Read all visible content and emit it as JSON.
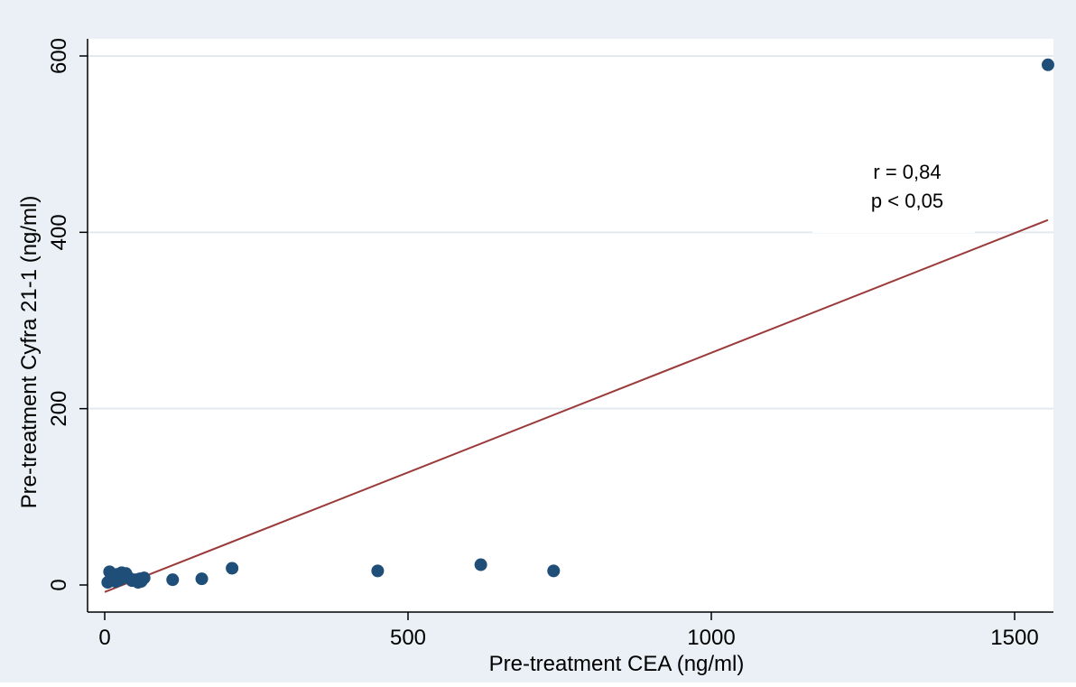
{
  "chart_data": {
    "type": "scatter",
    "title": "",
    "xlabel": "Pre-treatment CEA (ng/ml)",
    "ylabel": "Pre-treatment Cyfra 21-1 (ng/ml)",
    "xlim": [
      0,
      1600
    ],
    "ylim": [
      0,
      600
    ],
    "x_ticks": [
      0,
      500,
      1000,
      1500
    ],
    "y_ticks": [
      0,
      200,
      400,
      600
    ],
    "grid": "horizontal",
    "legend": "none",
    "annotation": {
      "line1": "r = 0,84",
      "line2": "p < 0,05"
    },
    "series": [
      {
        "kind": "points",
        "color": "#1f4e79",
        "x": [
          5,
          8,
          10,
          12,
          15,
          18,
          20,
          22,
          25,
          28,
          30,
          32,
          35,
          40,
          45,
          50,
          55,
          58,
          60,
          62,
          65,
          112,
          160,
          210,
          450,
          620,
          740,
          1555
        ],
        "y": [
          3,
          15,
          7,
          5,
          10,
          4,
          12,
          8,
          6,
          14,
          11,
          9,
          13,
          8,
          5,
          6,
          3,
          7,
          4,
          6,
          8,
          6,
          7,
          19,
          16,
          23,
          16,
          590
        ]
      },
      {
        "kind": "fit-line",
        "color": "#9b3a3a",
        "x": [
          0,
          1555
        ],
        "y": [
          -8,
          414
        ]
      }
    ]
  }
}
